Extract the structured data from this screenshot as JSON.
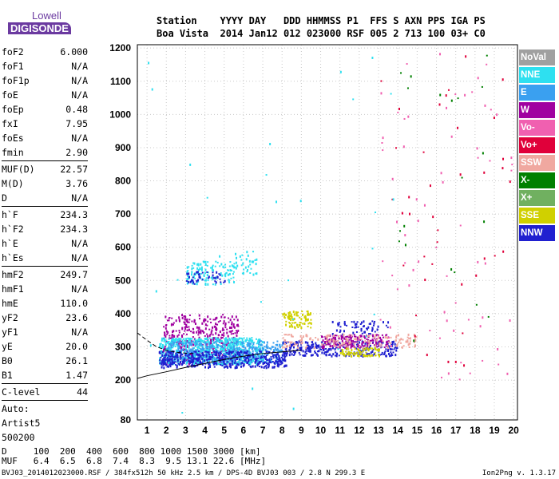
{
  "logo": {
    "line1": "Lowell",
    "line2": "DIGISONDE"
  },
  "header": {
    "row1": "Station    YYYY DAY   DDD HHMMSS P1  FFS S AXN PPS IGA PS",
    "row2": "Boa Vista  2014 Jan12 012 023000 RSF 005 2 713 100 03+ C0"
  },
  "params": {
    "groups": [
      [
        [
          "foF2",
          "6.000"
        ],
        [
          "foF1",
          "N/A"
        ],
        [
          "foF1p",
          "N/A"
        ],
        [
          "foE",
          "N/A"
        ],
        [
          "foEp",
          "0.48"
        ],
        [
          "fxI",
          "7.95"
        ],
        [
          "foEs",
          "N/A"
        ],
        [
          "fmin",
          "2.90"
        ]
      ],
      [
        [
          "MUF(D)",
          "22.57"
        ],
        [
          "M(D)",
          "3.76"
        ],
        [
          "D",
          "N/A"
        ]
      ],
      [
        [
          "h`F",
          "234.3"
        ],
        [
          "h`F2",
          "234.3"
        ],
        [
          "h`E",
          "N/A"
        ],
        [
          "h`Es",
          "N/A"
        ]
      ],
      [
        [
          "hmF2",
          "249.7"
        ],
        [
          "hmF1",
          "N/A"
        ],
        [
          "hmE",
          "110.0"
        ],
        [
          "yF2",
          "23.6"
        ],
        [
          "yF1",
          "N/A"
        ],
        [
          "yE",
          "20.0"
        ],
        [
          "B0",
          "26.1"
        ],
        [
          "B1",
          "1.47"
        ]
      ],
      [
        [
          "C-level",
          "44"
        ]
      ]
    ],
    "auto_lines": [
      "Auto:",
      "Artist5",
      "500200"
    ]
  },
  "legend": [
    {
      "label": "NoVal",
      "color": "#a0a0a0"
    },
    {
      "label": "NNE",
      "color": "#2ee0f0"
    },
    {
      "label": "E",
      "color": "#3aa0f0"
    },
    {
      "label": "W",
      "color": "#a000a0"
    },
    {
      "label": "Vo-",
      "color": "#f060b0"
    },
    {
      "label": "Vo+",
      "color": "#e0003a"
    },
    {
      "label": "SSW",
      "color": "#f0a8a0"
    },
    {
      "label": "X-",
      "color": "#008000"
    },
    {
      "label": "X+",
      "color": "#70b060"
    },
    {
      "label": "SSE",
      "color": "#d0d000"
    },
    {
      "label": "NNW",
      "color": "#2020d0"
    }
  ],
  "dmuf": {
    "row1": "D     100  200  400  600  800 1000 1500 3000 [km]",
    "row2": "MUF   6.4  6.5  6.8  7.4  8.3  9.5 13.1 22.6 [MHz]"
  },
  "footer": "BVJ03_2014012023000.RSF / 384fx512h 50 kHz 2.5 km / DPS-4D BVJ03 003 / 2.8 N 299.3 E",
  "version": "Ion2Png v. 1.3.17",
  "chart_data": {
    "type": "scatter",
    "title": "",
    "xlabel": "",
    "ylabel": "",
    "xlim": [
      0.5,
      20.2
    ],
    "ylim": [
      80,
      1210
    ],
    "xticks": [
      1,
      2,
      3,
      4,
      5,
      6,
      7,
      8,
      9,
      10,
      11,
      12,
      13,
      14,
      15,
      16,
      17,
      18,
      19,
      20
    ],
    "yticks": [
      80,
      200,
      300,
      400,
      500,
      600,
      700,
      800,
      900,
      1000,
      1100,
      1200
    ],
    "grid": true,
    "legend_position": "right",
    "clusters": [
      {
        "name": "W",
        "x": [
          1.8,
          5.7
        ],
        "y": [
          250,
          400
        ],
        "n": 420
      },
      {
        "name": "NNE",
        "x": [
          1.6,
          7.0
        ],
        "y": [
          250,
          330
        ],
        "n": 700
      },
      {
        "name": "E",
        "x": [
          2.0,
          8.0
        ],
        "y": [
          255,
          320
        ],
        "n": 400
      },
      {
        "name": "NNW",
        "x": [
          1.6,
          8.2
        ],
        "y": [
          240,
          290
        ],
        "n": 450
      },
      {
        "name": "NNW",
        "x": [
          8.0,
          14.0
        ],
        "y": [
          275,
          320
        ],
        "n": 300
      },
      {
        "name": "W",
        "x": [
          10.0,
          13.5
        ],
        "y": [
          300,
          340
        ],
        "n": 180
      },
      {
        "name": "NNW",
        "x": [
          10.5,
          13.5
        ],
        "y": [
          340,
          380
        ],
        "n": 60
      },
      {
        "name": "SSE",
        "x": [
          8.0,
          9.5
        ],
        "y": [
          360,
          410
        ],
        "n": 80
      },
      {
        "name": "SSE",
        "x": [
          11.0,
          13.0
        ],
        "y": [
          275,
          300
        ],
        "n": 70
      },
      {
        "name": "SSW",
        "x": [
          8.0,
          15.0
        ],
        "y": [
          300,
          340
        ],
        "n": 160
      },
      {
        "name": "NNE",
        "x": [
          3.0,
          5.5
        ],
        "y": [
          490,
          560
        ],
        "n": 120
      },
      {
        "name": "NNW",
        "x": [
          3.0,
          5.0
        ],
        "y": [
          490,
          530
        ],
        "n": 40
      },
      {
        "name": "NNE",
        "x": [
          5.5,
          6.7
        ],
        "y": [
          520,
          590
        ],
        "n": 35
      },
      {
        "name": "Vo-",
        "x": [
          13.0,
          20.0
        ],
        "y": [
          200,
          1200
        ],
        "n": 70
      },
      {
        "name": "Vo+",
        "x": [
          13.0,
          20.0
        ],
        "y": [
          200,
          1200
        ],
        "n": 40
      },
      {
        "name": "X-",
        "x": [
          14.0,
          19.0
        ],
        "y": [
          300,
          1200
        ],
        "n": 20
      },
      {
        "name": "NNE",
        "x": [
          1.0,
          14.0
        ],
        "y": [
          80,
          1200
        ],
        "n": 30
      }
    ],
    "trace_lines": [
      {
        "style": "solid",
        "x": [
          0.5,
          1,
          2,
          3,
          4,
          5,
          6,
          7,
          8,
          9
        ],
        "y": [
          205,
          213,
          225,
          238,
          250,
          262,
          272,
          280,
          285,
          290
        ]
      },
      {
        "style": "dashed",
        "x": [
          0.5,
          1,
          1.5,
          2,
          2.5,
          3,
          3.5
        ],
        "y": [
          342,
          320,
          300,
          290,
          284,
          281,
          280
        ]
      }
    ]
  }
}
